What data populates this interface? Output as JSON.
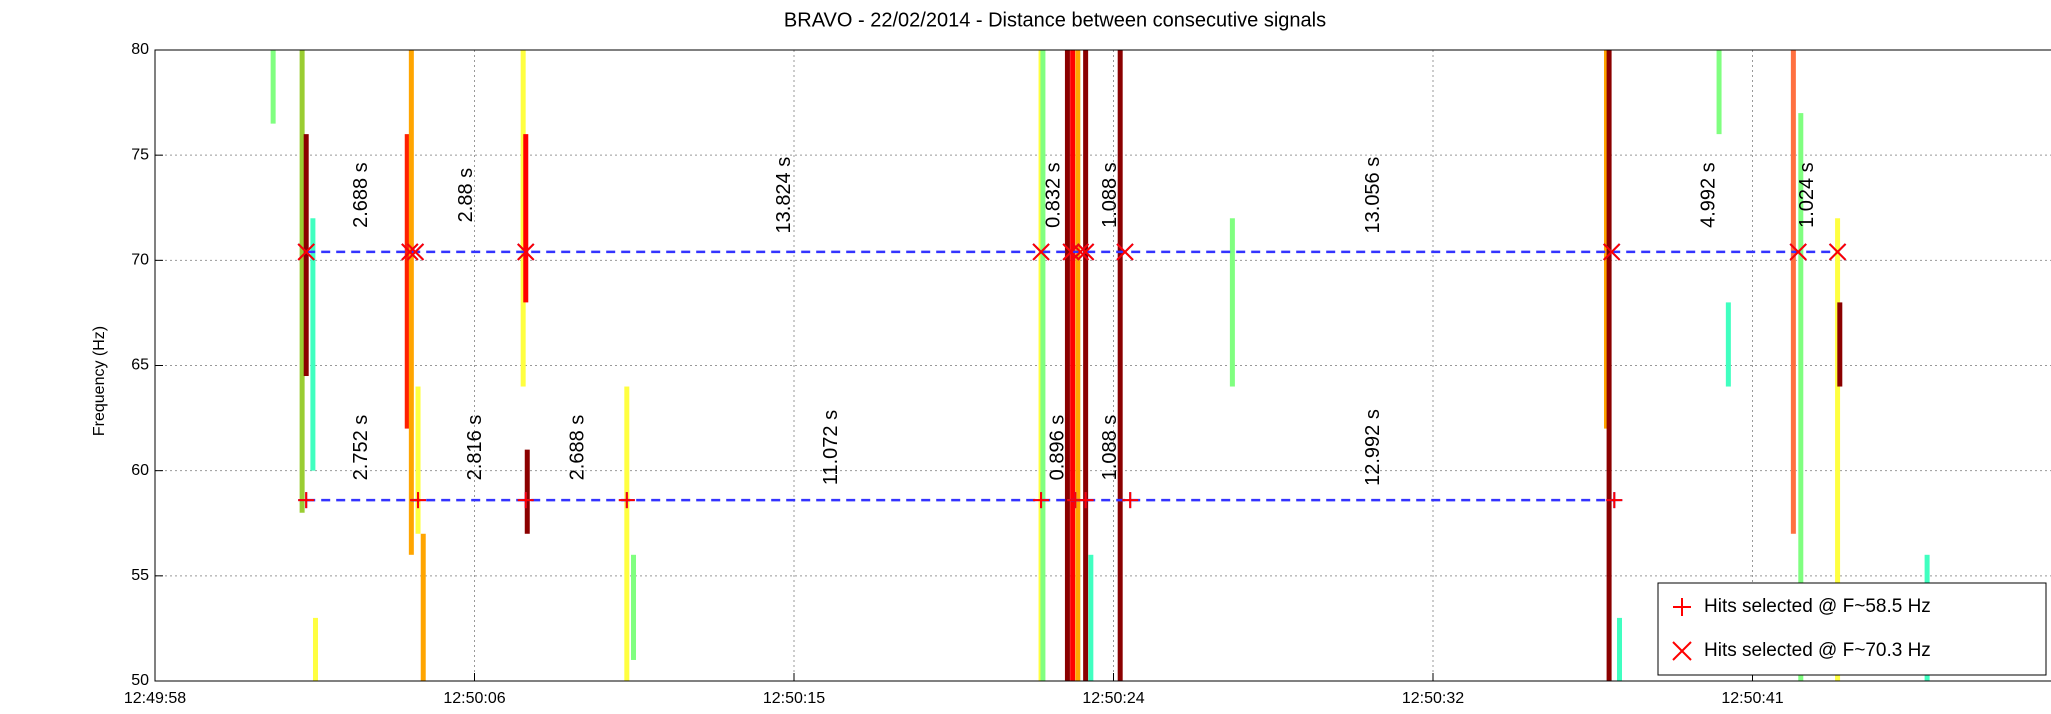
{
  "chart_data": {
    "type": "scatter",
    "title": "BRAVO - 22/02/2014 - Distance between consecutive signals",
    "y_label": "Frequency (Hz)",
    "xlim": [
      0,
      51.6
    ],
    "ylim": [
      50,
      80
    ],
    "xticks": [
      {
        "value": 0,
        "label": "12:49:58"
      },
      {
        "value": 8.6,
        "label": "12:50:06"
      },
      {
        "value": 17.2,
        "label": "12:50:15"
      },
      {
        "value": 25.8,
        "label": "12:50:24"
      },
      {
        "value": 34.4,
        "label": "12:50:32"
      },
      {
        "value": 43.0,
        "label": "12:50:41"
      }
    ],
    "yticks": [
      50,
      55,
      60,
      65,
      70,
      75,
      80
    ],
    "grid": true,
    "legend": "lower right",
    "signals": [
      {
        "x": 3.18,
        "y": [
          76.5,
          80
        ],
        "color": "#80ff80"
      },
      {
        "x": 3.96,
        "y": [
          58,
          80
        ],
        "color": "#9acd32"
      },
      {
        "x": 4.07,
        "y": [
          64.5,
          76
        ],
        "color": "#8b0000"
      },
      {
        "x": 4.25,
        "y": [
          60,
          72
        ],
        "color": "#40ffc0"
      },
      {
        "x": 4.32,
        "y": [
          50,
          53
        ],
        "color": "#ffff40"
      },
      {
        "x": 6.79,
        "y": [
          62,
          76
        ],
        "color": "#ff2000"
      },
      {
        "x": 6.9,
        "y": [
          56,
          80
        ],
        "color": "#ffa500"
      },
      {
        "x": 7.08,
        "y": [
          57,
          64
        ],
        "color": "#ffff40"
      },
      {
        "x": 7.22,
        "y": [
          50,
          57
        ],
        "color": "#ffa500"
      },
      {
        "x": 9.91,
        "y": [
          64,
          80
        ],
        "color": "#ffff40"
      },
      {
        "x": 9.98,
        "y": [
          68,
          76
        ],
        "color": "#ff0000"
      },
      {
        "x": 10.02,
        "y": [
          57,
          61
        ],
        "color": "#8b0000"
      },
      {
        "x": 12.7,
        "y": [
          50,
          64
        ],
        "color": "#ffff40"
      },
      {
        "x": 12.88,
        "y": [
          51,
          56
        ],
        "color": "#80ff80"
      },
      {
        "x": 23.85,
        "y": [
          50,
          80
        ],
        "color": "#ffff40"
      },
      {
        "x": 23.9,
        "y": [
          50,
          80
        ],
        "color": "#80ff80"
      },
      {
        "x": 24.56,
        "y": [
          50,
          80
        ],
        "color": "#8b0000"
      },
      {
        "x": 24.7,
        "y": [
          50,
          80
        ],
        "color": "#ff0000"
      },
      {
        "x": 24.84,
        "y": [
          50,
          80
        ],
        "color": "#ffa500"
      },
      {
        "x": 25.05,
        "y": [
          50,
          80
        ],
        "color": "#8b0000"
      },
      {
        "x": 25.19,
        "y": [
          50,
          56
        ],
        "color": "#40ffc0"
      },
      {
        "x": 25.98,
        "y": [
          50,
          80
        ],
        "color": "#8b0000"
      },
      {
        "x": 29.0,
        "y": [
          64,
          72
        ],
        "color": "#80ff80"
      },
      {
        "x": 39.07,
        "y": [
          62,
          80
        ],
        "color": "#ffa500"
      },
      {
        "x": 39.14,
        "y": [
          50,
          80
        ],
        "color": "#8b0000"
      },
      {
        "x": 39.42,
        "y": [
          50,
          53
        ],
        "color": "#40ffc0"
      },
      {
        "x": 42.1,
        "y": [
          76,
          80
        ],
        "color": "#80ff80"
      },
      {
        "x": 42.35,
        "y": [
          64,
          68
        ],
        "color": "#40ffc0"
      },
      {
        "x": 44.1,
        "y": [
          57,
          80
        ],
        "color": "#ff7040"
      },
      {
        "x": 44.3,
        "y": [
          50,
          77
        ],
        "color": "#80ff80"
      },
      {
        "x": 45.29,
        "y": [
          50,
          72
        ],
        "color": "#ffff40"
      },
      {
        "x": 45.35,
        "y": [
          64,
          68
        ],
        "color": "#8b0000"
      },
      {
        "x": 47.7,
        "y": [
          50,
          56
        ],
        "color": "#40ffc0"
      }
    ],
    "series": [
      {
        "name": "Hits selected @ F~58.5 Hz",
        "marker": "+",
        "color": "#ff0000",
        "line_color": "#3333ff",
        "x": [
          4.07,
          7.08,
          9.98,
          12.7,
          23.85,
          24.77,
          25.05,
          26.25,
          39.28
        ],
        "values": [
          58.6,
          58.6,
          58.6,
          58.6,
          58.6,
          58.6,
          58.6,
          58.6,
          58.6
        ]
      },
      {
        "name": "Hits selected @ F~70.3 Hz",
        "marker": "x",
        "color": "#ff0000",
        "line_color": "#3333ff",
        "x": [
          4.07,
          6.86,
          7.01,
          9.98,
          23.85,
          24.66,
          24.91,
          25.05,
          26.11,
          39.21,
          44.23,
          45.29
        ],
        "values": [
          70.4,
          70.4,
          70.4,
          70.4,
          70.4,
          70.4,
          70.4,
          70.4,
          70.4,
          70.4,
          70.4,
          70.4
        ]
      }
    ],
    "annotations": [
      {
        "text": "2.688 s",
        "x": 5.56,
        "y": 73.1
      },
      {
        "text": "2.88 s",
        "x": 8.39,
        "y": 73.1
      },
      {
        "text": "13.824 s",
        "x": 16.95,
        "y": 73.1
      },
      {
        "text": "0.832 s",
        "x": 24.2,
        "y": 73.1
      },
      {
        "text": "1.088 s",
        "x": 25.73,
        "y": 73.1
      },
      {
        "text": "13.056 s",
        "x": 32.8,
        "y": 73.1
      },
      {
        "text": "4.992 s",
        "x": 41.83,
        "y": 73.1
      },
      {
        "text": "1.024 s",
        "x": 44.48,
        "y": 73.1
      },
      {
        "text": "2.752 s",
        "x": 5.56,
        "y": 61.1
      },
      {
        "text": "2.816 s",
        "x": 8.63,
        "y": 61.1
      },
      {
        "text": "2.688 s",
        "x": 11.39,
        "y": 61.1
      },
      {
        "text": "11.072 s",
        "x": 18.22,
        "y": 61.1
      },
      {
        "text": "0.896 s",
        "x": 24.31,
        "y": 61.1
      },
      {
        "text": "1.088 s",
        "x": 25.73,
        "y": 61.1
      },
      {
        "text": "12.992 s",
        "x": 32.8,
        "y": 61.1
      }
    ]
  }
}
